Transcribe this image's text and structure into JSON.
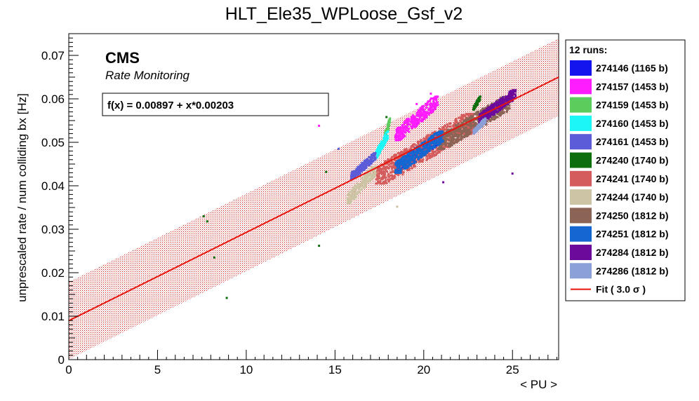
{
  "chart_data": {
    "type": "scatter",
    "title": "HLT_Ele35_WPLoose_Gsf_v2",
    "xlabel": "< PU >",
    "ylabel": "unprescaled rate / num colliding bx [Hz]",
    "xlim": [
      0,
      27.6
    ],
    "ylim": [
      0,
      0.075
    ],
    "xticks": [
      "0",
      "5",
      "10",
      "15",
      "20",
      "25"
    ],
    "yticks": [
      "0",
      "0.01",
      "0.02",
      "0.03",
      "0.04",
      "0.05",
      "0.06",
      "0.07"
    ],
    "experiment_label": "CMS",
    "sub_label": "Rate Monitoring",
    "fit_formula": "f(x) = 0.00897 + x*0.00203",
    "fit": {
      "intercept": 0.00897,
      "slope": 0.00203,
      "band_halfwidth": 0.0089,
      "color": "#e8140c"
    },
    "legend": {
      "header": "12 runs:",
      "entries": [
        {
          "label": "274146 (1165 b)",
          "color": "#1414ee"
        },
        {
          "label": "274157 (1453 b)",
          "color": "#ff1cff"
        },
        {
          "label": "274159 (1453 b)",
          "color": "#5ccc5c"
        },
        {
          "label": "274160 (1453 b)",
          "color": "#1cf6f6"
        },
        {
          "label": "274161 (1453 b)",
          "color": "#5c5cd8"
        },
        {
          "label": "274240 (1740 b)",
          "color": "#0c6e0c"
        },
        {
          "label": "274241 (1740 b)",
          "color": "#d45c5c"
        },
        {
          "label": "274244 (1740 b)",
          "color": "#ccc4a4"
        },
        {
          "label": "274250 (1812 b)",
          "color": "#8c6456"
        },
        {
          "label": "274251 (1812 b)",
          "color": "#1466d0"
        },
        {
          "label": "274284 (1812 b)",
          "color": "#6c0a9c"
        },
        {
          "label": "274286 (1812 b)",
          "color": "#8ca0d8"
        }
      ],
      "fit_label": "Fit ( 3.0 σ )"
    },
    "series": [
      {
        "name": "274146 (1165 b)",
        "color": "#1414ee",
        "x_range": [
          18.4,
          20.9
        ],
        "y_range": [
          0.0435,
          0.0515
        ]
      },
      {
        "name": "274157 (1453 b)",
        "color": "#ff1cff",
        "x_range": [
          18.4,
          20.8
        ],
        "y_range": [
          0.0505,
          0.0605
        ]
      },
      {
        "name": "274159 (1453 b)",
        "color": "#5ccc5c",
        "x_range": [
          17.7,
          18.1
        ],
        "y_range": [
          0.0495,
          0.0555
        ]
      },
      {
        "name": "274160 (1453 b)",
        "color": "#1cf6f6",
        "x_range": [
          17.3,
          18.0
        ],
        "y_range": [
          0.0465,
          0.0525
        ]
      },
      {
        "name": "274161 (1453 b)",
        "color": "#5c5cd8",
        "x_range": [
          15.9,
          17.3
        ],
        "y_range": [
          0.0415,
          0.0475
        ]
      },
      {
        "name": "274240 (1740 b)",
        "color": "#0c6e0c",
        "x_range": [
          22.8,
          23.2
        ],
        "y_range": [
          0.0575,
          0.0605
        ]
      },
      {
        "name": "274241 (1740 b)",
        "color": "#d45c5c",
        "x_range": [
          17.3,
          22.9
        ],
        "y_range": [
          0.0405,
          0.0565
        ]
      },
      {
        "name": "274244 (1740 b)",
        "color": "#ccc4a4",
        "x_range": [
          15.7,
          17.3
        ],
        "y_range": [
          0.036,
          0.0445
        ]
      },
      {
        "name": "274250 (1812 b)",
        "color": "#8c6456",
        "x_range": [
          20.8,
          24.9
        ],
        "y_range": [
          0.0485,
          0.0605
        ]
      },
      {
        "name": "274251 (1812 b)",
        "color": "#1466d0",
        "x_range": [
          18.4,
          21.1
        ],
        "y_range": [
          0.043,
          0.0525
        ]
      },
      {
        "name": "274284 (1812 b)",
        "color": "#6c0a9c",
        "x_range": [
          23.1,
          25.2
        ],
        "y_range": [
          0.0545,
          0.062
        ]
      },
      {
        "name": "274286 (1812 b)",
        "color": "#8ca0d8",
        "x_range": [
          22.8,
          23.5
        ],
        "y_range": [
          0.052,
          0.0555
        ]
      }
    ],
    "outliers": [
      {
        "x": 7.6,
        "y": 0.033,
        "color": "#0c6e0c"
      },
      {
        "x": 7.8,
        "y": 0.0318,
        "color": "#0c6e0c"
      },
      {
        "x": 8.2,
        "y": 0.0235,
        "color": "#0c6e0c"
      },
      {
        "x": 8.9,
        "y": 0.0142,
        "color": "#0c6e0c"
      },
      {
        "x": 14.1,
        "y": 0.0538,
        "color": "#ff1cff"
      },
      {
        "x": 14.1,
        "y": 0.0262,
        "color": "#0c6e0c"
      },
      {
        "x": 14.5,
        "y": 0.0432,
        "color": "#0c6e0c"
      },
      {
        "x": 15.2,
        "y": 0.0485,
        "color": "#5c5cd8"
      },
      {
        "x": 17.9,
        "y": 0.0558,
        "color": "#0c6e0c"
      },
      {
        "x": 18.5,
        "y": 0.0352,
        "color": "#ccc4a4"
      },
      {
        "x": 21.1,
        "y": 0.0408,
        "color": "#6c0a9c"
      },
      {
        "x": 25.0,
        "y": 0.0428,
        "color": "#6c0a9c"
      },
      {
        "x": 19.6,
        "y": 0.0588,
        "color": "#ff1cff"
      },
      {
        "x": 20.4,
        "y": 0.0612,
        "color": "#ff1cff"
      }
    ]
  }
}
